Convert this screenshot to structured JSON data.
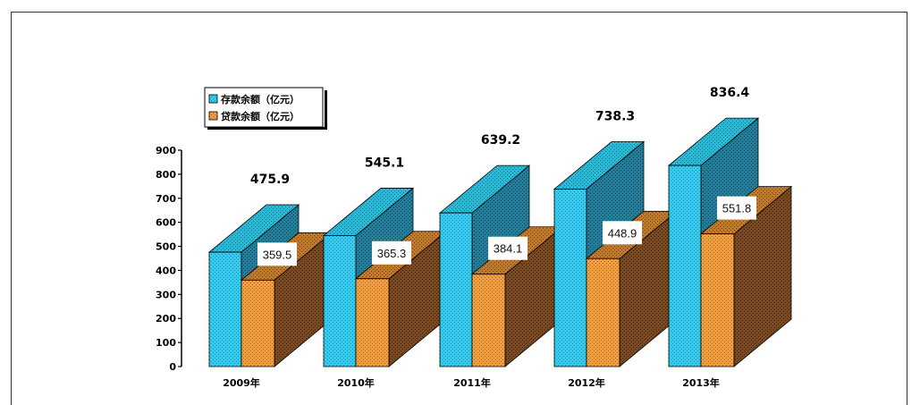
{
  "chart_data": {
    "type": "bar",
    "categories": [
      "2009年",
      "2010年",
      "2011年",
      "2012年",
      "2013年"
    ],
    "series": [
      {
        "name": "存款余额（亿元）",
        "values": [
          475.9,
          545.1,
          639.2,
          738.3,
          836.4
        ],
        "color": "#33ccee"
      },
      {
        "name": "贷款余额（亿元）",
        "values": [
          359.5,
          365.3,
          384.1,
          448.9,
          551.8
        ],
        "color": "#ee9933"
      }
    ],
    "series_labels": [
      [
        "475.9",
        "545.1",
        "639.2",
        "738.3",
        "836.4"
      ],
      [
        "359.5",
        "365.3",
        "384.1",
        "448.9",
        "551.8"
      ]
    ],
    "yticks": [
      "0",
      "100",
      "200",
      "300",
      "400",
      "500",
      "600",
      "700",
      "800",
      "900"
    ],
    "ylim": [
      0,
      900
    ],
    "three_d": true,
    "legend_position": "top-left",
    "grid": false,
    "title": "",
    "xlabel": "",
    "ylabel": ""
  }
}
